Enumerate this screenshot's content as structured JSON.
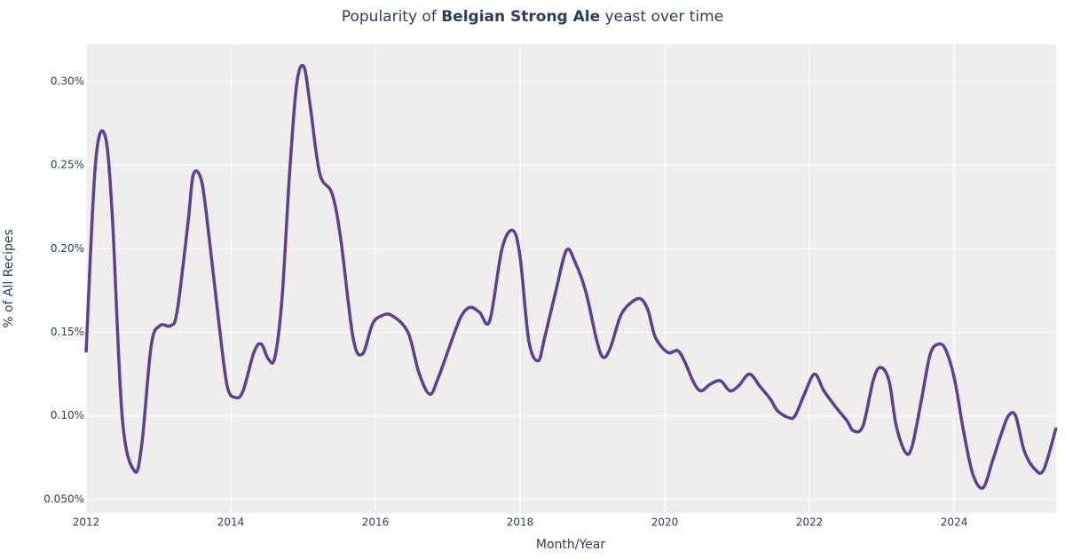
{
  "chart_data": {
    "type": "line",
    "title": {
      "prefix": "Popularity of ",
      "emphasis": "Belgian Strong Ale",
      "suffix": " yeast over time"
    },
    "x_label": "Month/Year",
    "y_label": "% of All Recipes",
    "xlim": [
      2012,
      2025.41
    ],
    "xticks": [
      2012,
      2014,
      2016,
      2018,
      2020,
      2022,
      2024
    ],
    "ylim": [
      0.042,
      0.3223
    ],
    "yticks": [
      {
        "value": 0.05,
        "label": "0.050%"
      },
      {
        "value": 0.1,
        "label": "0.10%"
      },
      {
        "value": 0.15,
        "label": "0.15%"
      },
      {
        "value": 0.2,
        "label": "0.20%"
      },
      {
        "value": 0.25,
        "label": "0.25%"
      },
      {
        "value": 0.3,
        "label": "0.30%"
      }
    ],
    "grid": true,
    "series": [
      {
        "name": "Belgian Strong Ale",
        "color": "#5c4191",
        "x": [
          2012.0,
          2012.13,
          2012.26,
          2012.36,
          2012.5,
          2012.67,
          2012.77,
          2012.9,
          2013.02,
          2013.17,
          2013.26,
          2013.41,
          2013.48,
          2013.58,
          2013.66,
          2013.83,
          2013.95,
          2014.07,
          2014.17,
          2014.32,
          2014.42,
          2014.52,
          2014.61,
          2014.71,
          2014.81,
          2014.91,
          2015.01,
          2015.1,
          2015.23,
          2015.4,
          2015.52,
          2015.69,
          2015.82,
          2015.96,
          2016.09,
          2016.23,
          2016.45,
          2016.6,
          2016.75,
          2016.87,
          2017.07,
          2017.19,
          2017.31,
          2017.44,
          2017.58,
          2017.75,
          2017.9,
          2018.0,
          2018.12,
          2018.25,
          2018.34,
          2018.49,
          2018.64,
          2018.76,
          2018.91,
          2019.06,
          2019.15,
          2019.25,
          2019.39,
          2019.54,
          2019.67,
          2019.77,
          2019.87,
          2020.04,
          2020.18,
          2020.28,
          2020.4,
          2020.5,
          2020.63,
          2020.77,
          2020.9,
          2021.02,
          2021.17,
          2021.31,
          2021.46,
          2021.56,
          2021.71,
          2021.8,
          2021.93,
          2022.07,
          2022.2,
          2022.37,
          2022.52,
          2022.61,
          2022.74,
          2022.88,
          2022.98,
          2023.1,
          2023.2,
          2023.33,
          2023.42,
          2023.55,
          2023.67,
          2023.79,
          2023.89,
          2024.01,
          2024.13,
          2024.26,
          2024.4,
          2024.53,
          2024.65,
          2024.75,
          2024.85,
          2024.97,
          2025.12,
          2025.24,
          2025.41
        ],
        "values": [
          0.138,
          0.251,
          0.268,
          0.2215,
          0.099,
          0.067,
          0.083,
          0.142,
          0.154,
          0.154,
          0.163,
          0.216,
          0.244,
          0.243,
          0.222,
          0.158,
          0.118,
          0.111,
          0.115,
          0.138,
          0.143,
          0.134,
          0.135,
          0.171,
          0.243,
          0.298,
          0.309,
          0.285,
          0.245,
          0.233,
          0.206,
          0.147,
          0.137,
          0.155,
          0.16,
          0.16,
          0.15,
          0.126,
          0.113,
          0.123,
          0.147,
          0.16,
          0.165,
          0.162,
          0.157,
          0.2,
          0.211,
          0.195,
          0.145,
          0.133,
          0.147,
          0.174,
          0.199,
          0.192,
          0.174,
          0.145,
          0.135,
          0.141,
          0.16,
          0.168,
          0.17,
          0.163,
          0.147,
          0.138,
          0.139,
          0.132,
          0.12,
          0.115,
          0.119,
          0.121,
          0.115,
          0.118,
          0.125,
          0.118,
          0.11,
          0.103,
          0.099,
          0.1,
          0.113,
          0.125,
          0.115,
          0.105,
          0.097,
          0.091,
          0.094,
          0.121,
          0.129,
          0.121,
          0.094,
          0.078,
          0.082,
          0.11,
          0.137,
          0.143,
          0.139,
          0.121,
          0.091,
          0.065,
          0.057,
          0.073,
          0.089,
          0.1,
          0.1,
          0.079,
          0.068,
          0.068,
          0.093
        ]
      }
    ]
  }
}
